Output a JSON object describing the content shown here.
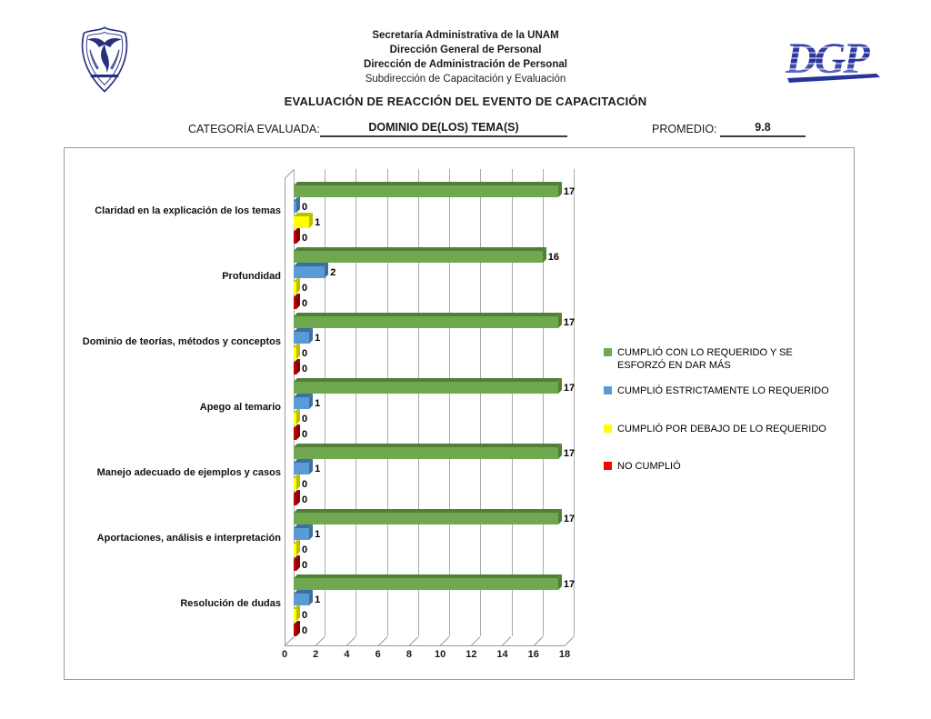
{
  "header": {
    "org_lines": [
      "Secretaría Administrativa de la UNAM",
      "Dirección General de Personal",
      "Dirección de Administración de Personal",
      "Subdirección de Capacitación y Evaluación"
    ],
    "title": "EVALUACIÓN DE REACCIÓN DEL EVENTO DE CAPACITACIÓN",
    "category_label": "CATEGORÍA EVALUADA:",
    "category_value": "DOMINIO DE(LOS) TEMA(S)",
    "promedio_label": "PROMEDIO:",
    "promedio_value": "9.8",
    "dgp_text": "DGP"
  },
  "colors": {
    "unam_blue": "#26317E",
    "dgp_blue": "#2A36A0"
  },
  "chart_data": {
    "type": "bar",
    "orientation": "horizontal",
    "style": "3d",
    "grid": true,
    "legend_position": "right",
    "xlim": [
      0,
      18
    ],
    "x_ticks": [
      0,
      2,
      4,
      6,
      8,
      10,
      12,
      14,
      16,
      18
    ],
    "categories": [
      "Claridad en la explicación de los temas",
      "Profundidad",
      "Dominio de teorías, métodos y conceptos",
      "Apego al temario",
      "Manejo adecuado de ejemplos y casos",
      "Aportaciones, análisis e interpretación",
      "Resolución de dudas"
    ],
    "series": [
      {
        "name": "CUMPLIÓ CON LO REQUERIDO Y SE ESFORZÓ EN DAR MÁS",
        "color": "#6FA84F",
        "dark": "#527F36",
        "legend_color": "#6FA84F",
        "values": [
          17,
          16,
          17,
          17,
          17,
          17,
          17
        ]
      },
      {
        "name": "CUMPLIÓ ESTRICTAMENTE LO REQUERIDO",
        "color": "#5B9BD5",
        "dark": "#3B6FA0",
        "legend_color": "#5B9BD5",
        "values": [
          0,
          2,
          1,
          1,
          1,
          1,
          1
        ]
      },
      {
        "name": "CUMPLIÓ POR DEBAJO DE LO REQUERIDO",
        "color": "#FFFF00",
        "dark": "#BDBD00",
        "legend_color": "#FFFF00",
        "values": [
          1,
          0,
          0,
          0,
          0,
          0,
          0
        ]
      },
      {
        "name": "NO CUMPLIÓ",
        "color": "#C00000",
        "dark": "#8A0000",
        "legend_color": "#FF0000",
        "values": [
          0,
          0,
          0,
          0,
          0,
          0,
          0
        ]
      }
    ]
  }
}
